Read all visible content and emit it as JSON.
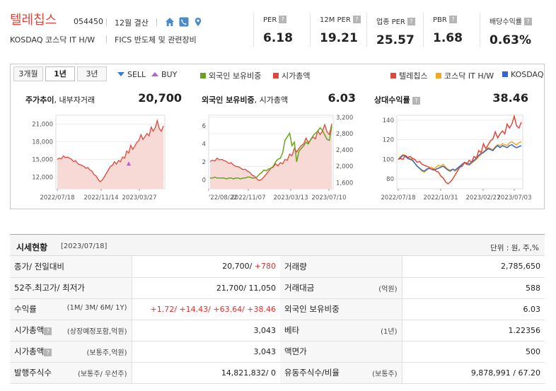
{
  "header": {
    "company_name": "텔레칩스",
    "code": "054450",
    "settlement": "12월 결산",
    "market": "KOSDAQ  코스닥 IT H/W",
    "sector": "FICS 반도체 및 관련장비",
    "icons": [
      "home-icon",
      "phone-icon",
      "location-pin-icon"
    ],
    "metrics": [
      {
        "label": "PER",
        "value": "6.18"
      },
      {
        "label": "12M PER",
        "value": "19.21"
      },
      {
        "label": "업종 PER",
        "value": "25.57"
      },
      {
        "label": "PBR",
        "value": "1.68"
      },
      {
        "label": "배당수익률",
        "value": "0.63%"
      }
    ],
    "help_mark": "?"
  },
  "chart_panel": {
    "tabs": [
      "3개월",
      "1년",
      "3년"
    ],
    "active_tab": "1년",
    "legend_left": [
      {
        "label": "SELL",
        "marker": "down-triangle",
        "color": "#3a7bd5"
      },
      {
        "label": "BUY",
        "marker": "up-triangle",
        "color": "#b45fd1"
      },
      {
        "label": "외국인 보유비중",
        "color": "#6aa222"
      },
      {
        "label": "시가총액",
        "color": "#e0473a"
      }
    ],
    "legend_right": [
      {
        "label": "텔레칩스",
        "color": "#e0473a"
      },
      {
        "label": "코스닥 IT H/W",
        "color": "#f5a623"
      },
      {
        "label": "KOSDAQ",
        "color": "#3366cc"
      }
    ],
    "panels": [
      {
        "title_bold": "주가추이",
        "title_rest": ", 내부자거래",
        "value": "20,700"
      },
      {
        "title_bold": "외국인 보유비중",
        "title_rest": ", 시가총액",
        "value": "6.03"
      },
      {
        "title_bold": "상대수익률",
        "title_rest": "",
        "value": "38.46"
      }
    ]
  },
  "chart_data": [
    {
      "type": "area",
      "title": "주가추이",
      "x_ticks": [
        "2022/07/18",
        "2022/11/14",
        "2023/03/27"
      ],
      "y_ticks": [
        "21,000",
        "18,000",
        "15,000",
        "12,000"
      ],
      "ylim": [
        10000,
        22500
      ],
      "series": [
        {
          "values": [
            15000,
            15200,
            15100,
            15600,
            15300,
            15400,
            15200,
            15000,
            14600,
            14800,
            14300,
            14100,
            14000,
            13800,
            13500,
            13600,
            13200,
            13000,
            12400,
            12200,
            11600,
            11200,
            11500,
            12000,
            12600,
            13200,
            13800,
            14000,
            14600,
            14200,
            14800,
            14600,
            15400,
            15200,
            16400,
            16100,
            17400,
            16700,
            17300,
            17900,
            18200,
            19200,
            18400,
            18900,
            19400,
            19000,
            20500,
            19800,
            20400,
            21600,
            20200,
            19800,
            20700
          ]
        }
      ],
      "annotations": [
        {
          "type": "BUY",
          "index": 35,
          "value": 14300
        }
      ]
    },
    {
      "type": "line",
      "title": "외국인 보유비중, 시가총액",
      "x_ticks": [
        "2022/08/22",
        "2022/11/07",
        "2023/03/13",
        "2023/07/10"
      ],
      "x_ticks_display": [
        "'22/08/22",
        "2022/11/07",
        "2023/03/13",
        "2023/07/10"
      ],
      "y_left_ticks": [
        "6",
        "4",
        "2",
        "0"
      ],
      "y_right_ticks": [
        "3,200",
        "2,800",
        "2,400",
        "2,000",
        "1,600"
      ],
      "series": [
        {
          "name": "외국인 보유비중",
          "axis": "left",
          "values": [
            0.2,
            0.2,
            0.3,
            0.2,
            0.2,
            0.2,
            0.2,
            0.1,
            0.2,
            0.2,
            0.1,
            0.2,
            0.2,
            0.1,
            0.2,
            0.2,
            0.3,
            0.3,
            0.2,
            0.2,
            0.3,
            0.6,
            0.8,
            1.1,
            1.0,
            1.2,
            1.3,
            1.5,
            2.0,
            2.3,
            2.4,
            3.0,
            4.4,
            4.8,
            5.2,
            3.8,
            4.2,
            2.0,
            3.2,
            3.5,
            3.8,
            4.2,
            4.0,
            4.5,
            4.9,
            5.2,
            5.4,
            5.8,
            5.5,
            5.0,
            4.5,
            4.4,
            6.0
          ]
        },
        {
          "name": "시가총액",
          "axis": "right",
          "values": [
            2120,
            2150,
            2130,
            2200,
            2160,
            2170,
            2140,
            2120,
            2070,
            2090,
            2030,
            2000,
            1990,
            1960,
            1920,
            1930,
            1880,
            1850,
            1780,
            1760,
            1690,
            1650,
            1680,
            1740,
            1810,
            1880,
            1950,
            1980,
            2060,
            2010,
            2090,
            2060,
            2170,
            2150,
            2300,
            2260,
            2440,
            2350,
            2440,
            2510,
            2550,
            2690,
            2580,
            2650,
            2720,
            2670,
            2870,
            2780,
            2860,
            3020,
            2840,
            2780,
            3043
          ]
        }
      ]
    },
    {
      "type": "line",
      "title": "상대수익률",
      "x_ticks": [
        "2022/07/18",
        "2022/10/31",
        "2023/02/27",
        "2023/07/03"
      ],
      "y_ticks": [
        "140",
        "120",
        "100",
        "80"
      ],
      "ylim": [
        70,
        145
      ],
      "series": [
        {
          "name": "텔레칩스",
          "values": [
            100,
            101,
            100,
            104,
            102,
            103,
            101,
            100,
            97,
            98,
            95,
            94,
            93,
            92,
            90,
            90,
            88,
            87,
            83,
            81,
            77,
            75,
            77,
            80,
            84,
            88,
            92,
            93,
            97,
            95,
            99,
            97,
            103,
            101,
            109,
            107,
            116,
            111,
            115,
            119,
            121,
            128,
            122,
            126,
            129,
            126,
            136,
            132,
            136,
            144,
            134,
            132,
            138
          ]
        },
        {
          "name": "코스닥 IT H/W",
          "values": [
            100,
            103,
            105,
            104,
            102,
            101,
            100,
            96,
            93,
            91,
            88,
            87,
            89,
            91,
            92,
            90,
            92,
            94,
            93,
            95,
            92,
            90,
            89,
            90,
            88,
            90,
            92,
            95,
            96,
            95,
            94,
            96,
            98,
            100,
            103,
            105,
            108,
            110,
            112,
            111,
            110,
            113,
            115,
            114,
            116,
            115,
            114,
            117,
            118,
            116,
            115,
            117,
            118
          ]
        },
        {
          "name": "KOSDAQ",
          "values": [
            100,
            102,
            104,
            103,
            101,
            100,
            99,
            96,
            93,
            91,
            89,
            88,
            90,
            91,
            90,
            89,
            90,
            91,
            92,
            93,
            91,
            89,
            88,
            90,
            89,
            91,
            93,
            95,
            97,
            96,
            95,
            97,
            99,
            101,
            104,
            106,
            107,
            109,
            111,
            110,
            109,
            112,
            114,
            112,
            114,
            113,
            112,
            114,
            115,
            113,
            112,
            113,
            114
          ]
        }
      ]
    }
  ],
  "market_status": {
    "title": "시세현황",
    "date": "[2023/07/18]",
    "unit": "단위 : 원, 주,%",
    "rows": [
      {
        "l_key": "종가/ 전일대비",
        "l_sub": "",
        "l_val": "20,700/ ",
        "l_val_red": "+780",
        "r_key": "거래량",
        "r_sub": "",
        "r_val": "2,785,650"
      },
      {
        "l_key": "52주.최고가/ 최저가",
        "l_sub": "",
        "l_val": "21,700/ 11,050",
        "l_val_red": "",
        "r_key": "거래대금",
        "r_sub": "(억원)",
        "r_val": "588"
      },
      {
        "l_key": "수익률",
        "l_sub": "(1M/ 3M/ 6M/ 1Y)",
        "l_val": "",
        "l_val_red": "+1.72/ +14.43/ +63.64/ +38.46",
        "r_key": "외국인 보유비중",
        "r_sub": "",
        "r_val": "6.03"
      },
      {
        "l_key": "시가총액",
        "l_sub": "(상장예정포함,억원)",
        "l_val": "3,043",
        "l_val_red": "",
        "r_key": "베타",
        "r_sub": "(1년)",
        "r_val": "1.22356"
      },
      {
        "l_key": "시가총액",
        "l_sub": "(보통주,억원)",
        "l_val": "3,043",
        "l_val_red": "",
        "r_key": "액면가",
        "r_sub": "",
        "r_val": "500"
      },
      {
        "l_key": "발행주식수",
        "l_sub": "(보통주/ 우선주)",
        "l_val": "14,821,832/ 0",
        "l_val_red": "",
        "r_key": "유동주식수/비율",
        "r_sub": "(보통주)",
        "r_val": "9,878,991 / 67.20"
      }
    ]
  }
}
